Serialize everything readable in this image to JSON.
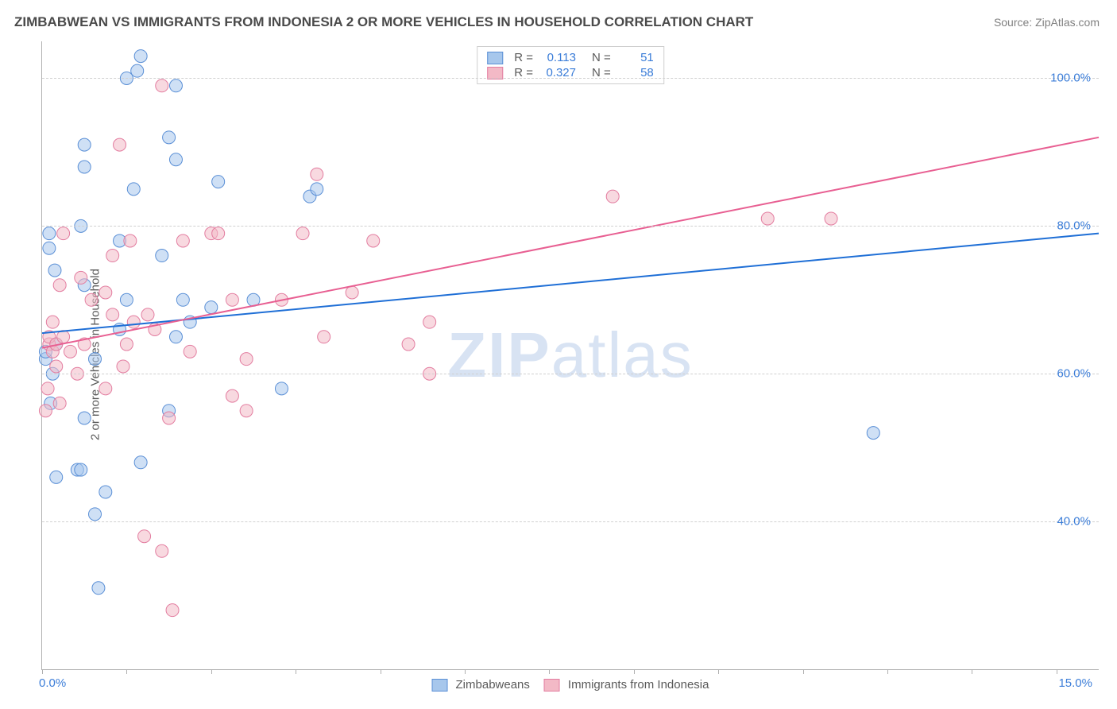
{
  "title": "ZIMBABWEAN VS IMMIGRANTS FROM INDONESIA 2 OR MORE VEHICLES IN HOUSEHOLD CORRELATION CHART",
  "source": "Source: ZipAtlas.com",
  "ylabel": "2 or more Vehicles in Household",
  "watermark_a": "ZIP",
  "watermark_b": "atlas",
  "chart": {
    "type": "scatter",
    "xlim": [
      0,
      15
    ],
    "ylim": [
      20,
      105
    ],
    "yticks": [
      40,
      60,
      80,
      100
    ],
    "ytick_labels": [
      "40.0%",
      "60.0%",
      "80.0%",
      "100.0%"
    ],
    "xticks": [
      0,
      1.2,
      2.4,
      3.6,
      4.8,
      6.0,
      7.2,
      8.4,
      9.6,
      10.8,
      12.0,
      13.2,
      14.4
    ],
    "xtick_labels_shown": {
      "0": "0.0%",
      "15": "15.0%"
    },
    "background_color": "#ffffff",
    "grid_color": "#d0d0d0",
    "axis_color": "#b0b0b0",
    "marker_radius": 8,
    "marker_opacity": 0.55,
    "series": [
      {
        "name": "Zimbabweans",
        "color_fill": "#a7c7ec",
        "color_stroke": "#5a8fd6",
        "r_value": "0.113",
        "n_value": "51",
        "trend": {
          "x1": 0,
          "y1": 65.5,
          "x2": 15,
          "y2": 79.0,
          "color": "#1f6fd6",
          "width": 2
        },
        "points": [
          [
            0.05,
            62
          ],
          [
            0.05,
            63
          ],
          [
            0.1,
            79
          ],
          [
            0.1,
            77
          ],
          [
            0.12,
            56
          ],
          [
            0.15,
            60
          ],
          [
            0.18,
            74
          ],
          [
            0.2,
            46
          ],
          [
            0.2,
            64
          ],
          [
            0.5,
            47
          ],
          [
            0.55,
            47
          ],
          [
            0.55,
            80
          ],
          [
            0.6,
            91
          ],
          [
            0.6,
            88
          ],
          [
            0.6,
            72
          ],
          [
            0.6,
            54
          ],
          [
            0.75,
            41
          ],
          [
            0.75,
            62
          ],
          [
            0.8,
            31
          ],
          [
            0.9,
            44
          ],
          [
            1.1,
            66
          ],
          [
            1.1,
            78
          ],
          [
            1.2,
            100
          ],
          [
            1.2,
            70
          ],
          [
            1.3,
            85
          ],
          [
            1.35,
            101
          ],
          [
            1.4,
            103
          ],
          [
            1.4,
            48
          ],
          [
            1.7,
            76
          ],
          [
            1.8,
            55
          ],
          [
            1.8,
            92
          ],
          [
            1.9,
            65
          ],
          [
            1.9,
            89
          ],
          [
            1.9,
            99
          ],
          [
            2.0,
            70
          ],
          [
            2.1,
            67
          ],
          [
            2.4,
            69
          ],
          [
            2.5,
            86
          ],
          [
            3.0,
            70
          ],
          [
            3.4,
            58
          ],
          [
            3.8,
            84
          ],
          [
            3.9,
            85
          ],
          [
            11.8,
            52
          ]
        ]
      },
      {
        "name": "Immigrants from Indonesia",
        "color_fill": "#f3b9c6",
        "color_stroke": "#e37da0",
        "r_value": "0.327",
        "n_value": "58",
        "trend": {
          "x1": 0,
          "y1": 63.5,
          "x2": 15,
          "y2": 92.0,
          "color": "#e85f92",
          "width": 2
        },
        "points": [
          [
            0.05,
            55
          ],
          [
            0.08,
            58
          ],
          [
            0.1,
            64
          ],
          [
            0.1,
            65
          ],
          [
            0.15,
            67
          ],
          [
            0.15,
            63
          ],
          [
            0.2,
            64
          ],
          [
            0.2,
            61
          ],
          [
            0.25,
            56
          ],
          [
            0.25,
            72
          ],
          [
            0.3,
            79
          ],
          [
            0.3,
            65
          ],
          [
            0.4,
            63
          ],
          [
            0.5,
            60
          ],
          [
            0.55,
            73
          ],
          [
            0.6,
            64
          ],
          [
            0.7,
            70
          ],
          [
            0.9,
            58
          ],
          [
            0.9,
            71
          ],
          [
            1.0,
            76
          ],
          [
            1.0,
            68
          ],
          [
            1.1,
            91
          ],
          [
            1.15,
            61
          ],
          [
            1.2,
            64
          ],
          [
            1.25,
            78
          ],
          [
            1.3,
            67
          ],
          [
            1.45,
            38
          ],
          [
            1.5,
            68
          ],
          [
            1.6,
            66
          ],
          [
            1.7,
            99
          ],
          [
            1.7,
            36
          ],
          [
            1.8,
            54
          ],
          [
            1.85,
            28
          ],
          [
            2.0,
            78
          ],
          [
            2.1,
            63
          ],
          [
            2.4,
            79
          ],
          [
            2.5,
            79
          ],
          [
            2.7,
            57
          ],
          [
            2.7,
            70
          ],
          [
            2.9,
            62
          ],
          [
            2.9,
            55
          ],
          [
            3.4,
            70
          ],
          [
            3.7,
            79
          ],
          [
            3.9,
            87
          ],
          [
            4.0,
            65
          ],
          [
            4.4,
            71
          ],
          [
            4.7,
            78
          ],
          [
            5.2,
            64
          ],
          [
            5.5,
            60
          ],
          [
            5.5,
            67
          ],
          [
            8.1,
            84
          ],
          [
            10.3,
            81
          ],
          [
            11.2,
            81
          ]
        ]
      }
    ]
  },
  "legend_bottom": [
    {
      "label": "Zimbabweans",
      "fill": "#a7c7ec",
      "stroke": "#5a8fd6"
    },
    {
      "label": "Immigrants from Indonesia",
      "fill": "#f3b9c6",
      "stroke": "#e37da0"
    }
  ]
}
